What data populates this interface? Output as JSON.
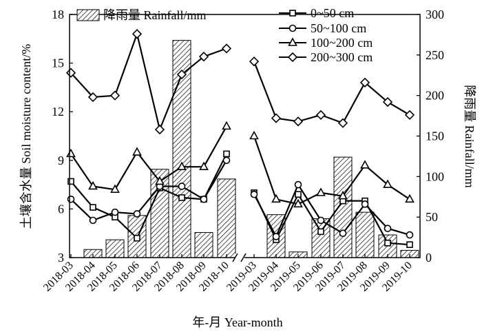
{
  "chart_data": {
    "type": "bar+line",
    "categories": [
      "2018-03",
      "2018-04",
      "2018-05",
      "2018-06",
      "2018-07",
      "2018-08",
      "2018-09",
      "2018-10",
      "2019-03",
      "2019-04",
      "2019-05",
      "2019-06",
      "2019-07",
      "2019-08",
      "2019-09",
      "2019-10"
    ],
    "groups": [
      "2018",
      "2019"
    ],
    "rainfall": {
      "name": "降雨量 Rainfall/mm",
      "values": [
        null,
        10,
        22,
        52,
        109,
        268,
        31,
        97,
        null,
        53,
        7,
        48,
        124,
        56,
        28,
        9
      ]
    },
    "series": [
      {
        "name": "0~50 cm",
        "marker": "square",
        "values": [
          7.7,
          6.1,
          5.5,
          4.2,
          7.3,
          6.7,
          6.6,
          9.4,
          7.0,
          4.1,
          6.9,
          4.6,
          6.5,
          6.5,
          3.9,
          3.8
        ]
      },
      {
        "name": "50~100 cm",
        "marker": "circle",
        "values": [
          6.6,
          5.3,
          5.8,
          5.7,
          7.4,
          7.4,
          6.6,
          9.0,
          6.9,
          4.3,
          7.5,
          5.3,
          4.5,
          6.3,
          4.8,
          4.4
        ]
      },
      {
        "name": "100~200 cm",
        "marker": "triangle",
        "values": [
          9.4,
          7.4,
          7.2,
          9.5,
          7.7,
          8.6,
          8.6,
          11.1,
          10.5,
          6.6,
          6.3,
          7.0,
          6.8,
          8.7,
          7.5,
          6.6
        ]
      },
      {
        "name": "200~300 cm",
        "marker": "diamond",
        "values": [
          14.4,
          12.9,
          13.0,
          16.8,
          10.9,
          14.3,
          15.4,
          15.9,
          15.1,
          11.6,
          11.4,
          11.8,
          11.3,
          13.8,
          12.6,
          11.8
        ]
      }
    ],
    "xlabel": "年-月 Year-month",
    "ylabel": "土壤含水量 Soil moisture content/%",
    "y2label": "降雨量 Rainfall/mm",
    "ylim": [
      3,
      18
    ],
    "yticks": [
      3,
      6,
      9,
      12,
      15,
      18
    ],
    "y2lim": [
      0,
      300
    ],
    "y2ticks": [
      0,
      50,
      100,
      150,
      200,
      250,
      300
    ],
    "legend_position": "top",
    "grid": false
  }
}
